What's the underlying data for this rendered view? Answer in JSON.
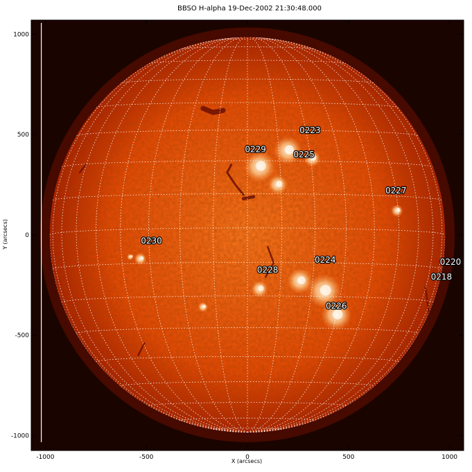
{
  "title": "BBSO H-alpha 19-Dec-2002 21:30:48.000",
  "axes": {
    "xlabel": "X (arcsecs)",
    "ylabel": "Y (arcsecs)",
    "xlim": [
      -1070,
      1070
    ],
    "ylim": [
      -1075,
      1070
    ],
    "x_ticks": [
      {
        "value": -1000,
        "label": "-1000"
      },
      {
        "value": -500,
        "label": "-500"
      },
      {
        "value": 0,
        "label": "0"
      },
      {
        "value": 500,
        "label": "500"
      },
      {
        "value": 1000,
        "label": "1000"
      }
    ],
    "y_ticks": [
      {
        "value": 1000,
        "label": "1000"
      },
      {
        "value": 500,
        "label": "500"
      },
      {
        "value": 0,
        "label": "0"
      },
      {
        "value": -500,
        "label": "-500"
      },
      {
        "value": -1000,
        "label": "-1000"
      }
    ]
  },
  "sun": {
    "center_arcsec": [
      0,
      0
    ],
    "radius_arcsec": 978,
    "b0_deg": -2,
    "grid_spacing_deg": 10,
    "colors": {
      "disk_center": "#ff7a1e",
      "disk_mid": "#e84a05",
      "limb": "#a81d00",
      "background": "#1a0400",
      "plage": "#fff4dc",
      "filament": "#6b0f00"
    }
  },
  "active_regions": [
    {
      "label": "0223",
      "x": 310,
      "y": 520
    },
    {
      "label": "0229",
      "x": 40,
      "y": 425
    },
    {
      "label": "0225",
      "x": 280,
      "y": 400
    },
    {
      "label": "0227",
      "x": 735,
      "y": 220
    },
    {
      "label": "0230",
      "x": -475,
      "y": -30
    },
    {
      "label": "0224",
      "x": 385,
      "y": -125
    },
    {
      "label": "0228",
      "x": 100,
      "y": -175
    },
    {
      "label": "0220",
      "x": 1005,
      "y": -135
    },
    {
      "label": "0218",
      "x": 960,
      "y": -210
    },
    {
      "label": "0226",
      "x": 440,
      "y": -355
    }
  ],
  "bright_patches": [
    {
      "x": 60,
      "y": 340,
      "r": 55
    },
    {
      "x": 200,
      "y": 420,
      "r": 50
    },
    {
      "x": 320,
      "y": 380,
      "r": 30
    },
    {
      "x": 150,
      "y": 250,
      "r": 35
    },
    {
      "x": -530,
      "y": -120,
      "r": 22
    },
    {
      "x": -580,
      "y": -110,
      "r": 12
    },
    {
      "x": 260,
      "y": -230,
      "r": 45
    },
    {
      "x": 380,
      "y": -280,
      "r": 60
    },
    {
      "x": 440,
      "y": -400,
      "r": 55
    },
    {
      "x": 60,
      "y": -270,
      "r": 30
    },
    {
      "x": -220,
      "y": -360,
      "r": 18
    },
    {
      "x": 740,
      "y": 120,
      "r": 22
    }
  ],
  "filaments": [
    {
      "points": [
        [
          -220,
          630
        ],
        [
          -170,
          610
        ],
        [
          -120,
          620
        ]
      ],
      "w": 12
    },
    {
      "points": [
        [
          -80,
          350
        ],
        [
          -100,
          310
        ],
        [
          -60,
          250
        ],
        [
          -20,
          200
        ]
      ],
      "w": 5
    },
    {
      "points": [
        [
          -800,
          350
        ],
        [
          -830,
          310
        ]
      ],
      "w": 4
    },
    {
      "points": [
        [
          100,
          -60
        ],
        [
          130,
          -140
        ],
        [
          90,
          -210
        ]
      ],
      "w": 4
    },
    {
      "points": [
        [
          -510,
          -540
        ],
        [
          -540,
          -600
        ]
      ],
      "w": 4
    },
    {
      "points": [
        [
          30,
          190
        ],
        [
          -20,
          180
        ]
      ],
      "w": 8
    },
    {
      "points": [
        [
          880,
          -260
        ],
        [
          900,
          -400
        ]
      ],
      "w": 4
    }
  ]
}
